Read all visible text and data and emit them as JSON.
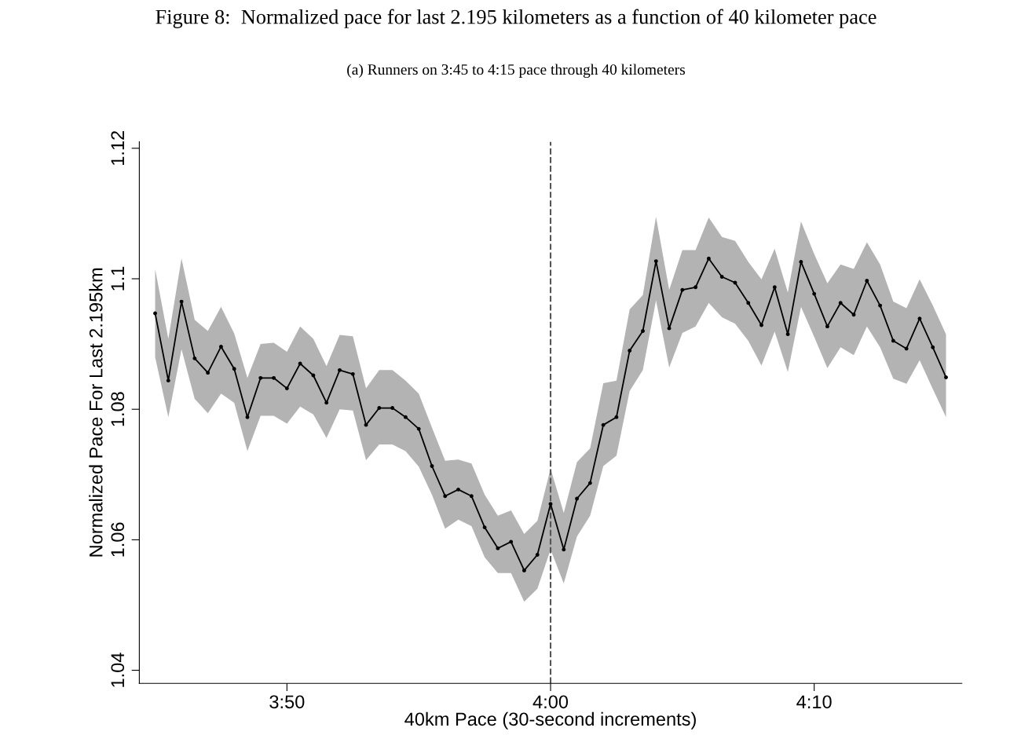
{
  "chart_data": {
    "type": "line",
    "title": "Figure 8:  Normalized pace for last 2.195 kilometers as a function of 40 kilometer pace",
    "subtitle": "(a) Runners on 3:45 to 4:15 pace through 40 kilometers",
    "xlabel": "40km Pace (30-second increments)",
    "ylabel": "Normalized Pace For Last 2.195km",
    "x": [
      225,
      225.5,
      226,
      226.5,
      227,
      227.5,
      228,
      228.5,
      229,
      229.5,
      230,
      230.5,
      231,
      231.5,
      232,
      232.5,
      233,
      233.5,
      234,
      234.5,
      235,
      235.5,
      236,
      236.5,
      237,
      237.5,
      238,
      238.5,
      239,
      239.5,
      240,
      240.5,
      241,
      241.5,
      242,
      242.5,
      243,
      243.5,
      244,
      244.5,
      245,
      245.5,
      246,
      246.5,
      247,
      247.5,
      248,
      248.5,
      249,
      249.5,
      250,
      250.5,
      251,
      251.5,
      252,
      252.5,
      253,
      253.5,
      254,
      254.5,
      255
    ],
    "series": [
      {
        "color": "#000000",
        "values": [
          1.0947,
          1.0844,
          1.0965,
          1.0878,
          1.0856,
          1.0896,
          1.0862,
          1.0788,
          1.0848,
          1.0848,
          1.0832,
          1.087,
          1.0852,
          1.081,
          1.086,
          1.0854,
          1.0776,
          1.0802,
          1.0802,
          1.0788,
          1.077,
          1.0713,
          1.0667,
          1.0677,
          1.0667,
          1.0619,
          1.0587,
          1.0597,
          1.0553,
          1.0577,
          1.0655,
          1.0585,
          1.0663,
          1.0687,
          1.0776,
          1.0788,
          1.089,
          1.092,
          1.1027,
          1.0924,
          1.0983,
          1.0987,
          1.1031,
          1.1003,
          1.0994,
          1.0963,
          1.0929,
          1.0987,
          1.0915,
          1.1026,
          1.0977,
          1.0927,
          1.0963,
          1.0945,
          1.0997,
          1.0959,
          1.0905,
          1.0893,
          1.0939,
          1.0895,
          1.0849
        ],
        "lower": [
          1.088,
          1.0788,
          1.0892,
          1.0816,
          1.0794,
          1.0824,
          1.081,
          1.0736,
          1.079,
          1.079,
          1.0778,
          1.0804,
          1.0792,
          1.0756,
          1.08,
          1.0798,
          1.0722,
          1.0746,
          1.0746,
          1.0736,
          1.0712,
          1.0669,
          1.0617,
          1.0631,
          1.0621,
          1.0573,
          1.0549,
          1.0549,
          1.0505,
          1.0525,
          1.0585,
          1.0533,
          1.0605,
          1.0637,
          1.0713,
          1.0729,
          1.0828,
          1.086,
          1.0967,
          1.0864,
          1.0917,
          1.0927,
          1.0963,
          1.0941,
          1.0931,
          1.0905,
          1.0867,
          1.0919,
          1.0857,
          1.0957,
          1.0911,
          1.0863,
          1.0895,
          1.0883,
          1.0927,
          1.0895,
          1.0847,
          1.0839,
          1.0875,
          1.0831,
          1.0788
        ],
        "upper": [
          1.1015,
          1.0908,
          1.1031,
          1.0937,
          1.092,
          1.0957,
          1.0916,
          1.0848,
          1.09,
          1.0902,
          1.0888,
          1.0927,
          1.0908,
          1.0866,
          1.0914,
          1.0912,
          1.0832,
          1.086,
          1.086,
          1.0844,
          1.0824,
          1.0772,
          1.0721,
          1.0723,
          1.0717,
          1.0669,
          1.0637,
          1.0645,
          1.0609,
          1.0629,
          1.0709,
          1.0641,
          1.0719,
          1.074,
          1.084,
          1.0844,
          1.0953,
          1.0975,
          1.1095,
          1.0983,
          1.1044,
          1.1044,
          1.1094,
          1.1064,
          1.1058,
          1.1026,
          1.0999,
          1.1046,
          1.0979,
          1.1088,
          1.1038,
          1.0993,
          1.1022,
          1.1015,
          1.1056,
          1.1022,
          1.0965,
          1.0955,
          1.0999,
          1.0959,
          1.0915
        ]
      }
    ],
    "xlim": [
      224.4,
      255.6
    ],
    "xticks": [
      {
        "value": 230,
        "label": "3:50"
      },
      {
        "value": 240,
        "label": "4:00"
      },
      {
        "value": 250,
        "label": "4:10"
      }
    ],
    "ylim": [
      1.038,
      1.121
    ],
    "yticks": [
      1.04,
      1.06,
      1.08,
      1.1,
      1.12
    ],
    "ref_lines": [
      {
        "axis": "x",
        "value": 240,
        "color": "#555555",
        "line_style": "dashed"
      }
    ],
    "marker": "circle",
    "line_style": "solid",
    "grid": false,
    "legend": false
  }
}
